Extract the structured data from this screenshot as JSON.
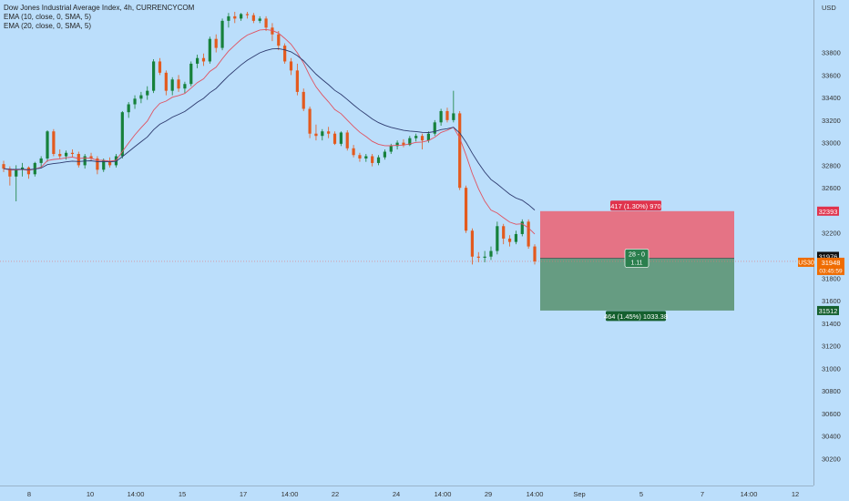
{
  "legend": {
    "symbol": "Dow Jones Industrial Average Index, 4h, CURRENCYCOM",
    "ema10": "EMA (10, close, 0, SMA, 5)",
    "ema20": "EMA (20, close, 0, SMA, 5)"
  },
  "chart_data": {
    "type": "candlestick",
    "y_axis": {
      "unit_label": "USD",
      "ticks": [
        33800,
        33600,
        33400,
        33200,
        33000,
        32800,
        32600,
        32200,
        31800,
        31600,
        31400,
        31200,
        31000,
        30800,
        30600,
        30400,
        30200
      ],
      "range": [
        30050,
        34200
      ]
    },
    "x_axis": {
      "ticks": [
        "8",
        "10",
        "14:00",
        "15",
        "17",
        "14:00",
        "22",
        "24",
        "14:00",
        "29",
        "14:00",
        "Sep",
        "5",
        "7",
        "14:00",
        "12"
      ]
    },
    "price_labels": {
      "stop": "32393",
      "entry": "31976",
      "symbol_tag": "US30",
      "current": "31948",
      "countdown": "03:45:59",
      "target": "31512"
    },
    "position": {
      "entry": 31976,
      "stop": 32393,
      "target": 31512,
      "stop_label": "417 (1.30%) 970",
      "target_label": "464 (1.45%) 1033.38",
      "mid_line1": "28 - 0",
      "mid_line2": "1.11"
    },
    "current_price": 31948,
    "candles": [
      [
        32810,
        32840,
        32740,
        32770
      ],
      [
        32770,
        32790,
        32620,
        32700
      ],
      [
        32700,
        32800,
        32480,
        32760
      ],
      [
        32760,
        32820,
        32700,
        32780
      ],
      [
        32780,
        32790,
        32680,
        32720
      ],
      [
        32720,
        32830,
        32700,
        32820
      ],
      [
        32820,
        32880,
        32780,
        32860
      ],
      [
        32860,
        33110,
        32830,
        33100
      ],
      [
        33100,
        33120,
        32880,
        32900
      ],
      [
        32900,
        32940,
        32860,
        32880
      ],
      [
        32880,
        32930,
        32850,
        32910
      ],
      [
        32910,
        32940,
        32870,
        32900
      ],
      [
        32900,
        32920,
        32780,
        32800
      ],
      [
        32800,
        32900,
        32770,
        32880
      ],
      [
        32880,
        32910,
        32840,
        32860
      ],
      [
        32860,
        32880,
        32720,
        32760
      ],
      [
        32760,
        32860,
        32740,
        32840
      ],
      [
        32840,
        32870,
        32780,
        32800
      ],
      [
        32800,
        32900,
        32780,
        32880
      ],
      [
        32880,
        33280,
        32860,
        33270
      ],
      [
        33270,
        33360,
        33220,
        33340
      ],
      [
        33340,
        33420,
        33300,
        33390
      ],
      [
        33390,
        33450,
        33350,
        33420
      ],
      [
        33420,
        33500,
        33380,
        33460
      ],
      [
        33460,
        33740,
        33440,
        33720
      ],
      [
        33720,
        33750,
        33600,
        33620
      ],
      [
        33620,
        33640,
        33420,
        33460
      ],
      [
        33460,
        33580,
        33420,
        33560
      ],
      [
        33560,
        33600,
        33450,
        33480
      ],
      [
        33480,
        33540,
        33440,
        33520
      ],
      [
        33520,
        33720,
        33500,
        33700
      ],
      [
        33700,
        33780,
        33660,
        33750
      ],
      [
        33750,
        33790,
        33680,
        33720
      ],
      [
        33720,
        33940,
        33700,
        33920
      ],
      [
        33920,
        33960,
        33800,
        33840
      ],
      [
        33840,
        34100,
        33820,
        34080
      ],
      [
        34080,
        34150,
        34020,
        34120
      ],
      [
        34120,
        34160,
        34060,
        34100
      ],
      [
        34100,
        34150,
        34080,
        34140
      ],
      [
        34140,
        34160,
        34100,
        34130
      ],
      [
        34130,
        34150,
        34060,
        34080
      ],
      [
        34080,
        34120,
        34060,
        34100
      ],
      [
        34100,
        34120,
        33990,
        34020
      ],
      [
        34020,
        34060,
        33900,
        33960
      ],
      [
        33960,
        33990,
        33820,
        33860
      ],
      [
        33860,
        33880,
        33700,
        33720
      ],
      [
        33720,
        33750,
        33600,
        33640
      ],
      [
        33640,
        33700,
        33420,
        33450
      ],
      [
        33450,
        33480,
        33280,
        33300
      ],
      [
        33300,
        33320,
        33040,
        33080
      ],
      [
        33080,
        33160,
        33020,
        33060
      ],
      [
        33060,
        33120,
        33020,
        33100
      ],
      [
        33100,
        33140,
        33040,
        33080
      ],
      [
        33080,
        33100,
        32980,
        32990
      ],
      [
        32990,
        33100,
        32970,
        33090
      ],
      [
        33090,
        33110,
        32930,
        32950
      ],
      [
        32950,
        32980,
        32870,
        32890
      ],
      [
        32890,
        32910,
        32830,
        32860
      ],
      [
        32860,
        32900,
        32830,
        32880
      ],
      [
        32880,
        32900,
        32790,
        32820
      ],
      [
        32820,
        32890,
        32800,
        32870
      ],
      [
        32870,
        32940,
        32850,
        32920
      ],
      [
        32920,
        32990,
        32900,
        32970
      ],
      [
        32970,
        33020,
        32940,
        33000
      ],
      [
        33000,
        33030,
        32960,
        32980
      ],
      [
        32980,
        33060,
        32970,
        33040
      ],
      [
        33040,
        33080,
        33010,
        33060
      ],
      [
        33060,
        33080,
        32940,
        33020
      ],
      [
        33020,
        33100,
        33000,
        33080
      ],
      [
        33080,
        33200,
        33060,
        33180
      ],
      [
        33180,
        33300,
        33150,
        33280
      ],
      [
        33280,
        33310,
        33180,
        33200
      ],
      [
        33200,
        33460,
        33180,
        33260
      ],
      [
        33260,
        33280,
        32580,
        32600
      ],
      [
        32600,
        32620,
        32200,
        32220
      ],
      [
        32220,
        32240,
        31920,
        31990
      ],
      [
        31990,
        32030,
        31940,
        31980
      ],
      [
        31980,
        32040,
        31940,
        31990
      ],
      [
        31990,
        32080,
        31960,
        32040
      ],
      [
        32040,
        32300,
        32010,
        32260
      ],
      [
        32260,
        32280,
        32100,
        32150
      ],
      [
        32150,
        32180,
        32080,
        32120
      ],
      [
        32120,
        32220,
        32100,
        32190
      ],
      [
        32190,
        32320,
        32170,
        32300
      ],
      [
        32300,
        32320,
        32060,
        32080
      ],
      [
        32080,
        32100,
        31920,
        31948
      ]
    ]
  }
}
